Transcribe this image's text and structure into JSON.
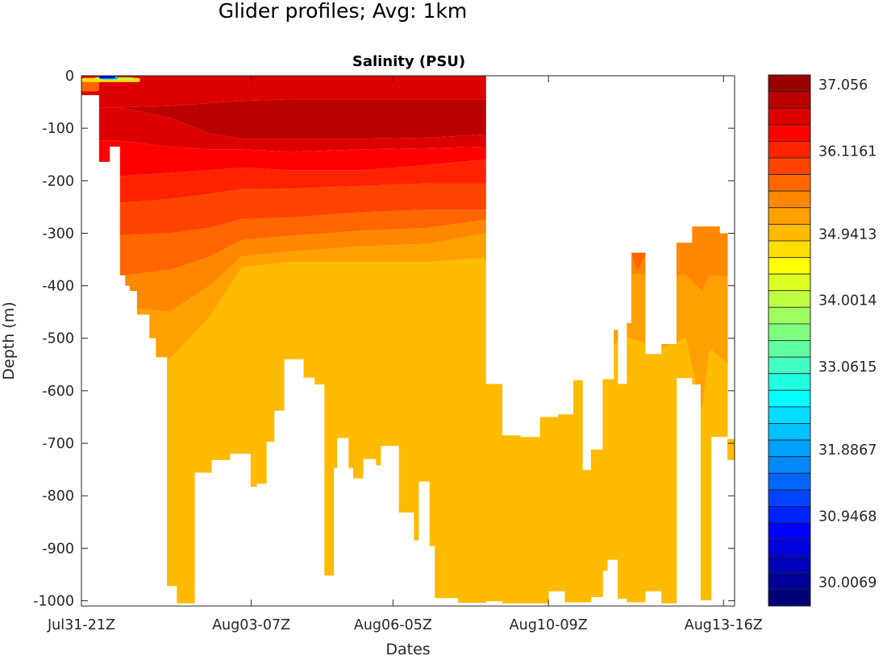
{
  "figure_title": "Glider profiles; Avg: 1km",
  "chart_data": {
    "type": "heatmap",
    "subtype": "filled-contour depth-time section",
    "title": "Salinity  (PSU)",
    "xlabel": "Dates",
    "ylabel": "Depth  (m)",
    "x_units": "profile index (0-100 across axis)",
    "xlim": [
      0,
      100
    ],
    "ylim": [
      -1010,
      0
    ],
    "xticks": [
      {
        "value": 0,
        "label": "Jul31-21Z"
      },
      {
        "value": 26.0,
        "label": "Aug03-07Z"
      },
      {
        "value": 47.7,
        "label": "Aug06-05Z"
      },
      {
        "value": 71.5,
        "label": "Aug10-09Z"
      },
      {
        "value": 98.3,
        "label": "Aug13-16Z"
      }
    ],
    "yticks": [
      {
        "value": 0,
        "label": "0"
      },
      {
        "value": -100,
        "label": "-100"
      },
      {
        "value": -200,
        "label": "-200"
      },
      {
        "value": -300,
        "label": "-300"
      },
      {
        "value": -400,
        "label": "-400"
      },
      {
        "value": -500,
        "label": "-500"
      },
      {
        "value": -600,
        "label": "-600"
      },
      {
        "value": -700,
        "label": "-700"
      },
      {
        "value": -800,
        "label": "-800"
      },
      {
        "value": -900,
        "label": "-900"
      },
      {
        "value": -1000,
        "label": "-1000"
      }
    ],
    "grid": false,
    "colorbar": {
      "placement": "right",
      "min": 29.5361,
      "max": 37.056,
      "colors": [
        "#990000",
        "#bb0000",
        "#dd0000",
        "#ff0000",
        "#ff2200",
        "#ff4400",
        "#ff6600",
        "#ff8800",
        "#ffa000",
        "#ffbb00",
        "#ffdd00",
        "#ffff00",
        "#ddff22",
        "#c0ff40",
        "#a0ff60",
        "#80ff80",
        "#60ffa0",
        "#40ffc0",
        "#20ffe0",
        "#00ffff",
        "#00ddff",
        "#00c0ff",
        "#00a0ff",
        "#0088ff",
        "#0066ff",
        "#0044ff",
        "#0022ff",
        "#0000ff",
        "#0000dd",
        "#0000bb",
        "#000099",
        "#000077"
      ],
      "ticks": [
        {
          "value": 37.056,
          "label": "37.056"
        },
        {
          "value": 36.1161,
          "label": "36.1161"
        },
        {
          "value": 34.9413,
          "label": "34.9413"
        },
        {
          "value": 34.0014,
          "label": "34.0014"
        },
        {
          "value": 33.0615,
          "label": "33.0615"
        },
        {
          "value": 31.8867,
          "label": "31.8867"
        },
        {
          "value": 30.9468,
          "label": "30.9468"
        },
        {
          "value": 30.0069,
          "label": "30.0069"
        }
      ]
    },
    "profile_coverage": [
      {
        "x": [
          0,
          2.7
        ],
        "depth": [
          0,
          37
        ]
      },
      {
        "x": [
          2.7,
          4.3
        ],
        "depth": [
          0,
          164
        ]
      },
      {
        "x": [
          4.3,
          5.9
        ],
        "depth": [
          0,
          135
        ]
      },
      {
        "x": [
          5.9,
          6.7
        ],
        "depth": [
          0,
          380
        ]
      },
      {
        "x": [
          6.7,
          7.4
        ],
        "depth": [
          0,
          400
        ]
      },
      {
        "x": [
          7.4,
          8.5
        ],
        "depth": [
          0,
          410
        ]
      },
      {
        "x": [
          8.5,
          10.4
        ],
        "depth": [
          0,
          455
        ]
      },
      {
        "x": [
          10.4,
          11.4
        ],
        "depth": [
          0,
          500
        ]
      },
      {
        "x": [
          11.4,
          13.1
        ],
        "depth": [
          0,
          536
        ]
      },
      {
        "x": [
          13.1,
          14.6
        ],
        "depth": [
          0,
          972
        ]
      },
      {
        "x": [
          14.6,
          17.3
        ],
        "depth": [
          0,
          1005
        ]
      },
      {
        "x": [
          17.3,
          19.9
        ],
        "depth": [
          0,
          756
        ]
      },
      {
        "x": [
          19.9,
          22.7
        ],
        "depth": [
          0,
          732
        ]
      },
      {
        "x": [
          22.7,
          25.9
        ],
        "depth": [
          0,
          720
        ]
      },
      {
        "x": [
          25.9,
          26.8
        ],
        "depth": [
          0,
          783
        ]
      },
      {
        "x": [
          26.8,
          28.3
        ],
        "depth": [
          0,
          777
        ]
      },
      {
        "x": [
          28.3,
          29.5
        ],
        "depth": [
          0,
          697
        ]
      },
      {
        "x": [
          29.5,
          31.0
        ],
        "depth": [
          0,
          638
        ]
      },
      {
        "x": [
          31.0,
          34.0
        ],
        "depth": [
          0,
          540
        ]
      },
      {
        "x": [
          34.0,
          35.7
        ],
        "depth": [
          0,
          575
        ]
      },
      {
        "x": [
          35.7,
          37.2
        ],
        "depth": [
          0,
          588
        ]
      },
      {
        "x": [
          37.2,
          38.6
        ],
        "depth": [
          0,
          952
        ]
      },
      {
        "x": [
          38.6,
          39.1
        ],
        "depth": [
          0,
          747
        ]
      },
      {
        "x": [
          39.1,
          40.9
        ],
        "depth": [
          0,
          690
        ]
      },
      {
        "x": [
          40.9,
          41.6
        ],
        "depth": [
          0,
          747
        ]
      },
      {
        "x": [
          41.6,
          43.1
        ],
        "depth": [
          0,
          767
        ]
      },
      {
        "x": [
          43.1,
          45.1
        ],
        "depth": [
          0,
          730
        ]
      },
      {
        "x": [
          45.1,
          45.8
        ],
        "depth": [
          0,
          742
        ]
      },
      {
        "x": [
          45.8,
          48.6
        ],
        "depth": [
          0,
          705
        ]
      },
      {
        "x": [
          48.6,
          50.9
        ],
        "depth": [
          0,
          832
        ]
      },
      {
        "x": [
          50.9,
          51.6
        ],
        "depth": [
          0,
          885
        ]
      },
      {
        "x": [
          51.6,
          53.3
        ],
        "depth": [
          0,
          773
        ]
      },
      {
        "x": [
          53.3,
          54.1
        ],
        "depth": [
          0,
          896
        ]
      },
      {
        "x": [
          54.1,
          57.7
        ],
        "depth": [
          0,
          995
        ]
      },
      {
        "x": [
          57.7,
          61.9
        ],
        "depth": [
          0,
          1004
        ]
      },
      {
        "x": [
          61.9,
          64.4
        ],
        "depth": [
          587,
          1001
        ]
      },
      {
        "x": [
          64.4,
          67.2
        ],
        "depth": [
          685,
          1005
        ]
      },
      {
        "x": [
          67.2,
          70.2
        ],
        "depth": [
          688,
          1005
        ]
      },
      {
        "x": [
          70.2,
          71.5
        ],
        "depth": [
          650,
          1005
        ]
      },
      {
        "x": [
          71.5,
          73.0
        ],
        "depth": [
          650,
          982
        ]
      },
      {
        "x": [
          73.0,
          74.0
        ],
        "depth": [
          645,
          982
        ]
      },
      {
        "x": [
          74.0,
          75.3
        ],
        "depth": [
          645,
          1003
        ]
      },
      {
        "x": [
          75.3,
          76.7
        ],
        "depth": [
          580,
          1003
        ]
      },
      {
        "x": [
          76.7,
          78.0
        ],
        "depth": [
          751,
          1003
        ]
      },
      {
        "x": [
          78.0,
          79.8
        ],
        "depth": [
          712,
          993
        ]
      },
      {
        "x": [
          79.8,
          80.5
        ],
        "depth": [
          578,
          943
        ]
      },
      {
        "x": [
          80.5,
          81.5
        ],
        "depth": [
          578,
          922
        ]
      },
      {
        "x": [
          81.5,
          82.1
        ],
        "depth": [
          484,
          922
        ]
      },
      {
        "x": [
          82.1,
          83.5
        ],
        "depth": [
          587,
          996
        ]
      },
      {
        "x": [
          83.5,
          84.2
        ],
        "depth": [
          471,
          1003
        ]
      },
      {
        "x": [
          84.2,
          86.3
        ],
        "depth": [
          337,
          1003
        ]
      },
      {
        "x": [
          86.3,
          88.8
        ],
        "depth": [
          530,
          982
        ]
      },
      {
        "x": [
          88.8,
          91.1
        ],
        "depth": [
          511,
          1005
        ]
      },
      {
        "x": [
          91.1,
          93.5
        ],
        "depth": [
          318,
          576
        ]
      },
      {
        "x": [
          93.5,
          94.8
        ],
        "depth": [
          287,
          588
        ]
      },
      {
        "x": [
          94.8,
          96.4
        ],
        "depth": [
          287,
          999
        ]
      },
      {
        "x": [
          96.4,
          97.7
        ],
        "depth": [
          287,
          688
        ]
      },
      {
        "x": [
          97.7,
          98.9
        ],
        "depth": [
          300,
          688
        ]
      },
      {
        "x": [
          98.9,
          100
        ],
        "depth": [
          692,
          732
        ]
      }
    ],
    "contour_knots_x": [
      0,
      6,
      13.5,
      19.6,
      24.6,
      32,
      43.1,
      53,
      61.6,
      67.8,
      74,
      78.9,
      82.6,
      85.1,
      88.8,
      92.5,
      95,
      96.2,
      100
    ],
    "layers": [
      {
        "color": "#dd0000",
        "top": [
          0,
          0,
          0,
          0,
          0,
          0,
          0,
          0,
          0,
          0,
          0,
          0,
          0,
          0,
          0,
          0,
          0,
          0,
          0
        ],
        "bottom": [
          60,
          60,
          58,
          52,
          48,
          45,
          45,
          45,
          45,
          45,
          45,
          45,
          45,
          45,
          45,
          45,
          45,
          45,
          45
        ]
      },
      {
        "color": "#bb0000",
        "top": [
          60,
          60,
          58,
          52,
          48,
          45,
          45,
          45,
          45,
          45,
          45,
          45,
          45,
          45,
          45,
          45,
          45,
          45,
          45
        ],
        "bottom": [
          60,
          60,
          80,
          110,
          120,
          120,
          120,
          118,
          112,
          112,
          112,
          112,
          112,
          112,
          112,
          112,
          112,
          112,
          112
        ]
      },
      {
        "color": "#dd0000",
        "top": [
          60,
          60,
          80,
          110,
          120,
          120,
          120,
          118,
          112,
          112,
          112,
          112,
          112,
          112,
          112,
          112,
          112,
          112,
          112
        ],
        "bottom": [
          124,
          124,
          135,
          140,
          140,
          145,
          140,
          138,
          135,
          135,
          135,
          135,
          135,
          135,
          135,
          135,
          135,
          135,
          135
        ]
      },
      {
        "color": "#ff0000",
        "top": [
          124,
          124,
          135,
          140,
          140,
          145,
          140,
          138,
          135,
          135,
          135,
          135,
          135,
          135,
          135,
          135,
          135,
          135,
          135
        ],
        "bottom": [
          191,
          191,
          185,
          180,
          175,
          180,
          180,
          170,
          160,
          160,
          160,
          160,
          160,
          160,
          160,
          160,
          160,
          160,
          160
        ]
      },
      {
        "color": "#ff2200",
        "top": [
          191,
          191,
          185,
          180,
          175,
          180,
          180,
          170,
          160,
          160,
          160,
          160,
          160,
          160,
          160,
          160,
          160,
          160,
          160
        ],
        "bottom": [
          242,
          242,
          235,
          225,
          216,
          215,
          210,
          205,
          205,
          205,
          205,
          205,
          205,
          205,
          205,
          205,
          205,
          205,
          205
        ]
      },
      {
        "color": "#ff4400",
        "top": [
          242,
          242,
          235,
          225,
          216,
          215,
          210,
          205,
          205,
          205,
          205,
          205,
          205,
          205,
          205,
          205,
          205,
          205,
          205
        ],
        "bottom": [
          304,
          304,
          300,
          290,
          273,
          270,
          260,
          255,
          255,
          255,
          255,
          255,
          255,
          255,
          255,
          285,
          255,
          255,
          255
        ]
      },
      {
        "color": "#ff6600",
        "top": [
          304,
          304,
          300,
          290,
          273,
          270,
          260,
          255,
          255,
          255,
          255,
          255,
          255,
          255,
          255,
          285,
          255,
          255,
          255
        ],
        "bottom": [
          381,
          381,
          370,
          345,
          313,
          305,
          295,
          290,
          275,
          275,
          275,
          275,
          275,
          375,
          275,
          295,
          275,
          275,
          275
        ]
      },
      {
        "color": "#ff8800",
        "top": [
          381,
          381,
          370,
          345,
          313,
          305,
          295,
          290,
          275,
          275,
          275,
          275,
          275,
          375,
          275,
          295,
          275,
          275,
          275
        ],
        "bottom": [
          440,
          440,
          450,
          400,
          344,
          335,
          325,
          320,
          301,
          340,
          380,
          380,
          380,
          378,
          380,
          380,
          410,
          380,
          385
        ]
      },
      {
        "color": "#ffa000",
        "top": [
          440,
          440,
          450,
          400,
          344,
          335,
          325,
          320,
          301,
          340,
          380,
          380,
          380,
          378,
          380,
          380,
          410,
          380,
          385
        ],
        "bottom": [
          540,
          540,
          540,
          460,
          365,
          355,
          355,
          355,
          347,
          430,
          520,
          560,
          495,
          505,
          520,
          500,
          640,
          520,
          560
        ]
      },
      {
        "color": "#ffbb00",
        "top": [
          540,
          540,
          540,
          460,
          365,
          355,
          355,
          355,
          347,
          430,
          520,
          560,
          495,
          505,
          520,
          500,
          640,
          520,
          560
        ],
        "bottom": [
          1010,
          1010,
          1010,
          1010,
          1010,
          1010,
          1010,
          1010,
          1010,
          1010,
          1010,
          1010,
          1010,
          1010,
          1010,
          1010,
          1010,
          1010,
          1010
        ]
      }
    ],
    "surface_anomalies": [
      {
        "x": [
          0,
          2.7
        ],
        "depth": [
          8,
          30
        ],
        "color": "#ff6600"
      },
      {
        "x": [
          0,
          9
        ],
        "depth": [
          4,
          12
        ],
        "color": "#ffdd00"
      },
      {
        "x": [
          2.0,
          8
        ],
        "depth": [
          3,
          8
        ],
        "color": "#c0ff40"
      },
      {
        "x": [
          2.7,
          5.6
        ],
        "depth": [
          1,
          7
        ],
        "color": "#00c0ff"
      },
      {
        "x": [
          2.7,
          5.2
        ],
        "depth": [
          0,
          5
        ],
        "color": "#0000cc"
      }
    ]
  }
}
